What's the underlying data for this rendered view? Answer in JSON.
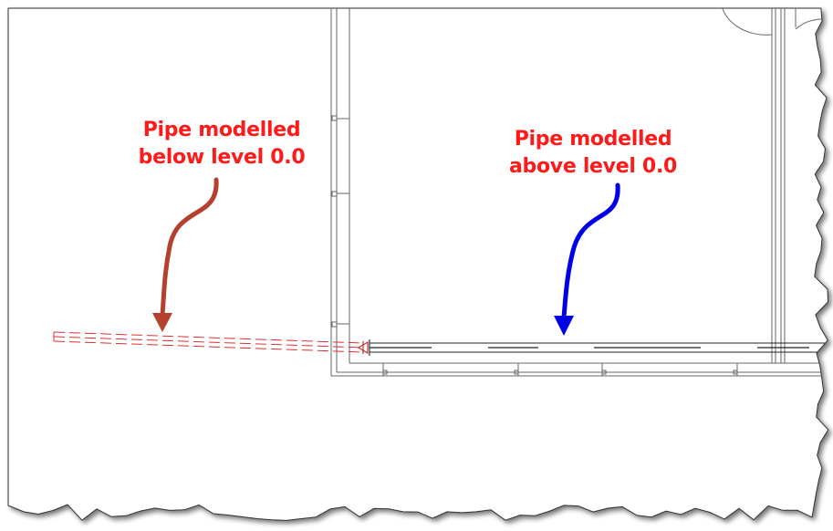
{
  "annotations": {
    "below": {
      "line1": "Pipe modelled",
      "line2": "below level 0.0",
      "arrow_color": "#b5402e"
    },
    "above": {
      "line1": "Pipe modelled",
      "line2": "above level 0.0",
      "arrow_color": "#0000e6"
    },
    "text_color": "#ff1a1a"
  },
  "drawing": {
    "line_color": "#555555",
    "hidden_pipe_color": "#e0302e",
    "paper_color": "#ffffff",
    "shadow_color": "#777777"
  }
}
